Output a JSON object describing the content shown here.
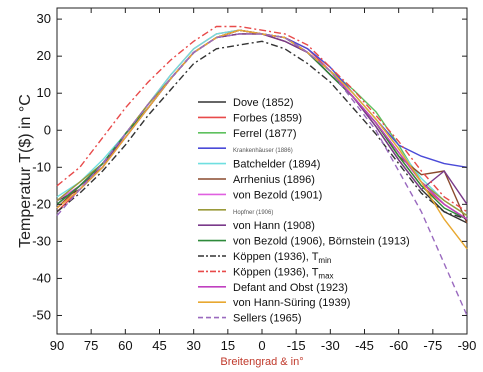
{
  "chart_data": {
    "type": "line",
    "xlabel": "Breitengrad & in°",
    "ylabel": "Temperatur T($) in °C",
    "xlim": [
      90,
      -90
    ],
    "ylim": [
      -55,
      33
    ],
    "x_ticks": [
      90,
      75,
      60,
      45,
      30,
      15,
      0,
      -15,
      -30,
      -45,
      -60,
      -75,
      -90
    ],
    "x_tick_labels": [
      "90",
      "75",
      "60",
      "45",
      "30",
      "15",
      "0",
      "-15",
      "-30",
      "-45",
      "-60",
      "-75",
      "-90"
    ],
    "y_ticks": [
      30,
      20,
      10,
      0,
      -10,
      -20,
      -30,
      -40,
      -50
    ],
    "y_tick_labels": [
      "30",
      "20",
      "10",
      "0",
      "-10",
      "-20",
      "-30",
      "-40",
      "-50"
    ],
    "grid": false,
    "legend_position": "bottom-center",
    "series": [
      {
        "name": "Dove (1852)",
        "color": "#333333",
        "dash": "solid",
        "small": false,
        "x": [
          90,
          80,
          70,
          60,
          50,
          40,
          30,
          20,
          10,
          0,
          -10,
          -20,
          -30,
          -40,
          -50,
          -60,
          -70,
          -80,
          -90
        ],
        "y": [
          -19,
          -16,
          -10,
          -1,
          6,
          14,
          21,
          25,
          27,
          26,
          25,
          21,
          15,
          9,
          1,
          -8,
          -16,
          -22,
          -25
        ]
      },
      {
        "name": "Forbes (1859)",
        "color": "#e84a4a",
        "dash": "solid",
        "small": false,
        "x": [
          90,
          80,
          70,
          60,
          50,
          40,
          30,
          20,
          10,
          0,
          -10,
          -20,
          -30,
          -40,
          -50,
          -60,
          -70,
          -80,
          -90
        ],
        "y": [
          -22,
          -16,
          -9,
          -1,
          7,
          15,
          22,
          26,
          27,
          26,
          25,
          22,
          16,
          9,
          2,
          -7,
          -15,
          -20,
          -24
        ]
      },
      {
        "name": "Ferrel (1877)",
        "color": "#5ec15e",
        "dash": "solid",
        "small": false,
        "x": [
          90,
          80,
          70,
          60,
          50,
          40,
          30,
          20,
          10,
          0,
          -10,
          -20,
          -30,
          -40,
          -50,
          -60,
          -70,
          -80,
          -90
        ],
        "y": [
          -20,
          -15,
          -9,
          -2,
          6,
          14,
          21,
          25,
          27,
          26,
          25,
          21,
          16,
          11,
          5,
          -4,
          -14,
          -20,
          -24
        ]
      },
      {
        "name": "Krankenhäuser (1886)",
        "color": "#4a4ad8",
        "dash": "solid",
        "small": true,
        "x": [
          90,
          80,
          70,
          60,
          50,
          40,
          30,
          20,
          10,
          0,
          -10,
          -20,
          -30,
          -40,
          -50,
          -60,
          -70,
          -80,
          -90
        ],
        "y": [
          -20,
          -15,
          -9,
          -2,
          6,
          14,
          21,
          25,
          27,
          26,
          25,
          22,
          17,
          10,
          3,
          -4,
          -7,
          -9,
          -10
        ]
      },
      {
        "name": "Batchelder (1894)",
        "color": "#6fdfe0",
        "dash": "solid",
        "small": false,
        "x": [
          90,
          80,
          70,
          60,
          50,
          40,
          30,
          20,
          10,
          0,
          -10,
          -20,
          -30,
          -40,
          -50,
          -60,
          -70,
          -80,
          -90
        ],
        "y": [
          -18,
          -14,
          -8,
          -1,
          7,
          15,
          22,
          26,
          27,
          26,
          25,
          21,
          16,
          10,
          3,
          -5,
          -13,
          -19,
          -23
        ]
      },
      {
        "name": "Arrhenius (1896)",
        "color": "#8a4a2e",
        "dash": "solid",
        "small": false,
        "x": [
          90,
          80,
          70,
          60,
          50,
          40,
          30,
          20,
          10,
          0,
          -10,
          -20,
          -30,
          -40,
          -50,
          -60,
          -70,
          -80,
          -90
        ],
        "y": [
          -21,
          -15,
          -10,
          -1,
          7,
          14,
          21,
          25,
          26,
          26,
          24,
          21,
          15,
          9,
          2,
          -7,
          -12,
          -11,
          -25
        ]
      },
      {
        "name": "von Bezold (1901)",
        "color": "#e060e0",
        "dash": "solid",
        "small": false,
        "x": [
          90,
          80,
          70,
          60,
          50,
          40,
          30,
          20,
          10,
          0,
          -10,
          -20,
          -30,
          -40,
          -50,
          -60,
          -70,
          -80,
          -90
        ],
        "y": [
          -19,
          -15,
          -9,
          -2,
          6,
          14,
          21,
          25,
          27,
          26,
          25,
          21,
          16,
          9,
          2,
          -6,
          -14,
          -20,
          -24
        ]
      },
      {
        "name": "Hopfner (1906)",
        "color": "#9a9a3a",
        "dash": "solid",
        "small": true,
        "x": [
          90,
          80,
          70,
          60,
          50,
          40,
          30,
          20,
          10,
          0,
          -10,
          -20,
          -30,
          -40,
          -50,
          -60,
          -70,
          -80,
          -90
        ],
        "y": [
          -19,
          -14,
          -9,
          -1,
          7,
          14,
          21,
          25,
          27,
          26,
          25,
          21,
          16,
          9,
          2,
          -6,
          -14,
          -19,
          -23
        ]
      },
      {
        "name": "von Hann (1908)",
        "color": "#7a3a8a",
        "dash": "solid",
        "small": false,
        "x": [
          90,
          80,
          70,
          60,
          50,
          40,
          30,
          20,
          10,
          0,
          -10,
          -20,
          -30,
          -40,
          -50,
          -60,
          -70,
          -80,
          -90
        ],
        "y": [
          -20,
          -15,
          -10,
          -1,
          6,
          14,
          21,
          25,
          26,
          26,
          24,
          21,
          15,
          9,
          1,
          -8,
          -16,
          -11,
          -20
        ]
      },
      {
        "name": "von Bezold (1906), Börnstein (1913)",
        "color": "#2e8a3a",
        "dash": "solid",
        "small": false,
        "x": [
          90,
          80,
          70,
          60,
          50,
          40,
          30,
          20,
          10,
          0,
          -10,
          -20,
          -30,
          -40,
          -50,
          -60,
          -70,
          -80,
          -90
        ],
        "y": [
          -20,
          -15,
          -9,
          -1,
          6,
          14,
          21,
          25,
          27,
          26,
          25,
          21,
          15,
          9,
          2,
          -7,
          -15,
          -21,
          -24
        ]
      },
      {
        "name": "Köppen (1936), T",
        "sub": "min",
        "color": "#333333",
        "dash": "dashdot",
        "small": false,
        "x": [
          90,
          80,
          70,
          60,
          50,
          40,
          30,
          20,
          10,
          0,
          -10,
          -20,
          -30,
          -40,
          -50,
          -60,
          -70,
          -80,
          -90
        ],
        "y": [
          -22,
          -17,
          -11,
          -4,
          4,
          11,
          18,
          22,
          23,
          24,
          22,
          18,
          13,
          6,
          -1,
          -9,
          -17,
          -22,
          -24
        ]
      },
      {
        "name": "Köppen (1936), T",
        "sub": "max",
        "color": "#e84a4a",
        "dash": "dashdot",
        "small": false,
        "x": [
          90,
          80,
          70,
          60,
          50,
          40,
          30,
          20,
          10,
          0,
          -10,
          -20,
          -30,
          -40,
          -50,
          -60,
          -70,
          -80,
          -90
        ],
        "y": [
          -15,
          -10,
          -2,
          6,
          13,
          19,
          24,
          28,
          28,
          27,
          26,
          23,
          17,
          11,
          4,
          -3,
          -11,
          -18,
          -22
        ]
      },
      {
        "name": "Defant and Obst (1923)",
        "color": "#c040c0",
        "dash": "solid",
        "small": false,
        "x": [
          90,
          80,
          70,
          60,
          50,
          40,
          30,
          20,
          10,
          0,
          -10,
          -20,
          -30,
          -40,
          -50,
          -60,
          -70,
          -80,
          -90
        ],
        "y": [
          -21,
          -16,
          -10,
          -2,
          6,
          14,
          21,
          25,
          27,
          26,
          25,
          21,
          16,
          9,
          2,
          -6,
          -14,
          -20,
          -24
        ]
      },
      {
        "name": "von Hann-Süring (1939)",
        "color": "#e8a830",
        "dash": "solid",
        "small": false,
        "x": [
          90,
          80,
          70,
          60,
          50,
          40,
          30,
          20,
          10,
          0,
          -10,
          -20,
          -30,
          -40,
          -50,
          -60,
          -70,
          -80,
          -90
        ],
        "y": [
          -21,
          -16,
          -10,
          -2,
          6,
          14,
          21,
          25,
          27,
          26,
          25,
          21,
          16,
          10,
          3,
          -5,
          -14,
          -24,
          -32
        ]
      },
      {
        "name": "Sellers (1965)",
        "color": "#9a6abf",
        "dash": "dashed",
        "small": false,
        "x": [
          90,
          80,
          70,
          60,
          50,
          40,
          30,
          20,
          10,
          0,
          -10,
          -20,
          -30,
          -40,
          -50,
          -60,
          -70,
          -80,
          -90
        ],
        "y": [
          -23,
          -16,
          -9,
          -1,
          7,
          14,
          21,
          25,
          26,
          26,
          25,
          21,
          16,
          8,
          0,
          -11,
          -22,
          -36,
          -50
        ]
      }
    ]
  }
}
